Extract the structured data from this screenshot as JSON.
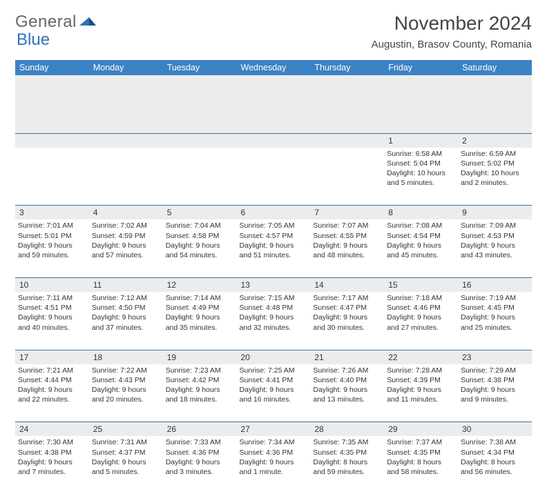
{
  "logo": {
    "part1": "General",
    "part2": "Blue"
  },
  "title": "November 2024",
  "location": "Augustin, Brasov County, Romania",
  "colors": {
    "header_bg": "#3b82c4",
    "header_text": "#ffffff",
    "daynum_bg": "#ececec",
    "row_border": "#3b6fa0",
    "body_text": "#333333",
    "logo_gray": "#666666",
    "logo_blue": "#2f72b9"
  },
  "weekdays": [
    "Sunday",
    "Monday",
    "Tuesday",
    "Wednesday",
    "Thursday",
    "Friday",
    "Saturday"
  ],
  "weeks": [
    {
      "nums": [
        "",
        "",
        "",
        "",
        "",
        "1",
        "2"
      ],
      "cells": [
        [],
        [],
        [],
        [],
        [],
        [
          "Sunrise: 6:58 AM",
          "Sunset: 5:04 PM",
          "Daylight: 10 hours and 5 minutes."
        ],
        [
          "Sunrise: 6:59 AM",
          "Sunset: 5:02 PM",
          "Daylight: 10 hours and 2 minutes."
        ]
      ]
    },
    {
      "nums": [
        "3",
        "4",
        "5",
        "6",
        "7",
        "8",
        "9"
      ],
      "cells": [
        [
          "Sunrise: 7:01 AM",
          "Sunset: 5:01 PM",
          "Daylight: 9 hours and 59 minutes."
        ],
        [
          "Sunrise: 7:02 AM",
          "Sunset: 4:59 PM",
          "Daylight: 9 hours and 57 minutes."
        ],
        [
          "Sunrise: 7:04 AM",
          "Sunset: 4:58 PM",
          "Daylight: 9 hours and 54 minutes."
        ],
        [
          "Sunrise: 7:05 AM",
          "Sunset: 4:57 PM",
          "Daylight: 9 hours and 51 minutes."
        ],
        [
          "Sunrise: 7:07 AM",
          "Sunset: 4:55 PM",
          "Daylight: 9 hours and 48 minutes."
        ],
        [
          "Sunrise: 7:08 AM",
          "Sunset: 4:54 PM",
          "Daylight: 9 hours and 45 minutes."
        ],
        [
          "Sunrise: 7:09 AM",
          "Sunset: 4:53 PM",
          "Daylight: 9 hours and 43 minutes."
        ]
      ]
    },
    {
      "nums": [
        "10",
        "11",
        "12",
        "13",
        "14",
        "15",
        "16"
      ],
      "cells": [
        [
          "Sunrise: 7:11 AM",
          "Sunset: 4:51 PM",
          "Daylight: 9 hours and 40 minutes."
        ],
        [
          "Sunrise: 7:12 AM",
          "Sunset: 4:50 PM",
          "Daylight: 9 hours and 37 minutes."
        ],
        [
          "Sunrise: 7:14 AM",
          "Sunset: 4:49 PM",
          "Daylight: 9 hours and 35 minutes."
        ],
        [
          "Sunrise: 7:15 AM",
          "Sunset: 4:48 PM",
          "Daylight: 9 hours and 32 minutes."
        ],
        [
          "Sunrise: 7:17 AM",
          "Sunset: 4:47 PM",
          "Daylight: 9 hours and 30 minutes."
        ],
        [
          "Sunrise: 7:18 AM",
          "Sunset: 4:46 PM",
          "Daylight: 9 hours and 27 minutes."
        ],
        [
          "Sunrise: 7:19 AM",
          "Sunset: 4:45 PM",
          "Daylight: 9 hours and 25 minutes."
        ]
      ]
    },
    {
      "nums": [
        "17",
        "18",
        "19",
        "20",
        "21",
        "22",
        "23"
      ],
      "cells": [
        [
          "Sunrise: 7:21 AM",
          "Sunset: 4:44 PM",
          "Daylight: 9 hours and 22 minutes."
        ],
        [
          "Sunrise: 7:22 AM",
          "Sunset: 4:43 PM",
          "Daylight: 9 hours and 20 minutes."
        ],
        [
          "Sunrise: 7:23 AM",
          "Sunset: 4:42 PM",
          "Daylight: 9 hours and 18 minutes."
        ],
        [
          "Sunrise: 7:25 AM",
          "Sunset: 4:41 PM",
          "Daylight: 9 hours and 16 minutes."
        ],
        [
          "Sunrise: 7:26 AM",
          "Sunset: 4:40 PM",
          "Daylight: 9 hours and 13 minutes."
        ],
        [
          "Sunrise: 7:28 AM",
          "Sunset: 4:39 PM",
          "Daylight: 9 hours and 11 minutes."
        ],
        [
          "Sunrise: 7:29 AM",
          "Sunset: 4:38 PM",
          "Daylight: 9 hours and 9 minutes."
        ]
      ]
    },
    {
      "nums": [
        "24",
        "25",
        "26",
        "27",
        "28",
        "29",
        "30"
      ],
      "cells": [
        [
          "Sunrise: 7:30 AM",
          "Sunset: 4:38 PM",
          "Daylight: 9 hours and 7 minutes."
        ],
        [
          "Sunrise: 7:31 AM",
          "Sunset: 4:37 PM",
          "Daylight: 9 hours and 5 minutes."
        ],
        [
          "Sunrise: 7:33 AM",
          "Sunset: 4:36 PM",
          "Daylight: 9 hours and 3 minutes."
        ],
        [
          "Sunrise: 7:34 AM",
          "Sunset: 4:36 PM",
          "Daylight: 9 hours and 1 minute."
        ],
        [
          "Sunrise: 7:35 AM",
          "Sunset: 4:35 PM",
          "Daylight: 8 hours and 59 minutes."
        ],
        [
          "Sunrise: 7:37 AM",
          "Sunset: 4:35 PM",
          "Daylight: 8 hours and 58 minutes."
        ],
        [
          "Sunrise: 7:38 AM",
          "Sunset: 4:34 PM",
          "Daylight: 8 hours and 56 minutes."
        ]
      ]
    }
  ]
}
